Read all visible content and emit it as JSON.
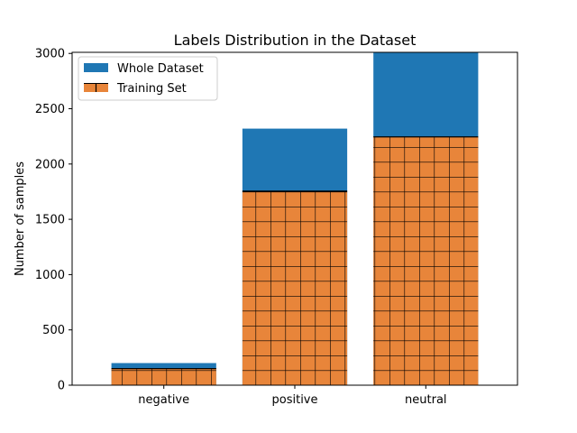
{
  "chart_data": {
    "type": "bar",
    "title": "Labels Distribution in the Dataset",
    "xlabel": "",
    "ylabel": "Number of samples",
    "categories": [
      "negative",
      "positive",
      "neutral"
    ],
    "series": [
      {
        "name": "Whole Dataset",
        "values": [
          200,
          2320,
          3010
        ],
        "color": "#1f77b4",
        "hatch": "none"
      },
      {
        "name": "Training Set",
        "values": [
          150,
          1755,
          2245
        ],
        "color": "#e8853a",
        "hatch": "grid"
      }
    ],
    "ylim": [
      0,
      3010
    ],
    "yticks": [
      0,
      500,
      1000,
      1500,
      2000,
      2500,
      3000
    ],
    "grid": false,
    "legend_position": "top-left"
  }
}
